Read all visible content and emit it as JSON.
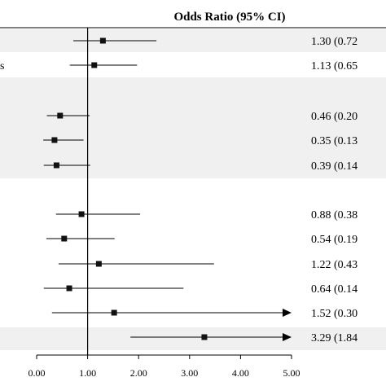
{
  "chart_data": {
    "type": "forest",
    "title": "Odds Ratio (95% CI)",
    "xlabel": "",
    "ylabel": "",
    "xlim": [
      0.0,
      5.0
    ],
    "reference_line": 1.0,
    "x_ticks": [
      "0.00",
      "1.00",
      "2.00",
      "3.00",
      "4.00",
      "5.00"
    ],
    "grid": false,
    "row_bands": [
      {
        "shaded": true
      },
      {
        "shaded": false
      },
      {
        "shaded": true
      },
      {
        "shaded": false
      },
      {
        "shaded": true
      }
    ],
    "rows": [
      {
        "left_label": "",
        "or": 1.3,
        "lower": 0.72,
        "upper": 2.35,
        "ci_text": "1.30 (0.72",
        "arrow": false
      },
      {
        "left_label": "s",
        "or": 1.13,
        "lower": 0.65,
        "upper": 1.97,
        "ci_text": "1.13 (0.65",
        "arrow": false
      },
      {
        "left_label": "",
        "or": 0.46,
        "lower": 0.2,
        "upper": 1.04,
        "ci_text": "0.46 (0.20",
        "arrow": false
      },
      {
        "left_label": "",
        "or": 0.35,
        "lower": 0.13,
        "upper": 0.92,
        "ci_text": "0.35 (0.13",
        "arrow": false
      },
      {
        "left_label": "",
        "or": 0.39,
        "lower": 0.14,
        "upper": 1.05,
        "ci_text": "0.39 (0.14",
        "arrow": false
      },
      {
        "left_label": "",
        "or": 0.88,
        "lower": 0.38,
        "upper": 2.03,
        "ci_text": "0.88 (0.38",
        "arrow": false
      },
      {
        "left_label": "",
        "or": 0.54,
        "lower": 0.19,
        "upper": 1.53,
        "ci_text": "0.54 (0.19",
        "arrow": false
      },
      {
        "left_label": "",
        "or": 1.22,
        "lower": 0.43,
        "upper": 3.48,
        "ci_text": "1.22 (0.43",
        "arrow": false
      },
      {
        "left_label": "",
        "or": 0.64,
        "lower": 0.14,
        "upper": 2.88,
        "ci_text": "0.64 (0.14",
        "arrow": false
      },
      {
        "left_label": "",
        "or": 1.52,
        "lower": 0.3,
        "upper": 5.0,
        "ci_text": "1.52 (0.30",
        "arrow": true
      },
      {
        "left_label": "",
        "or": 3.29,
        "lower": 1.84,
        "upper": 5.0,
        "ci_text": "3.29 (1.84",
        "arrow": true
      }
    ]
  }
}
